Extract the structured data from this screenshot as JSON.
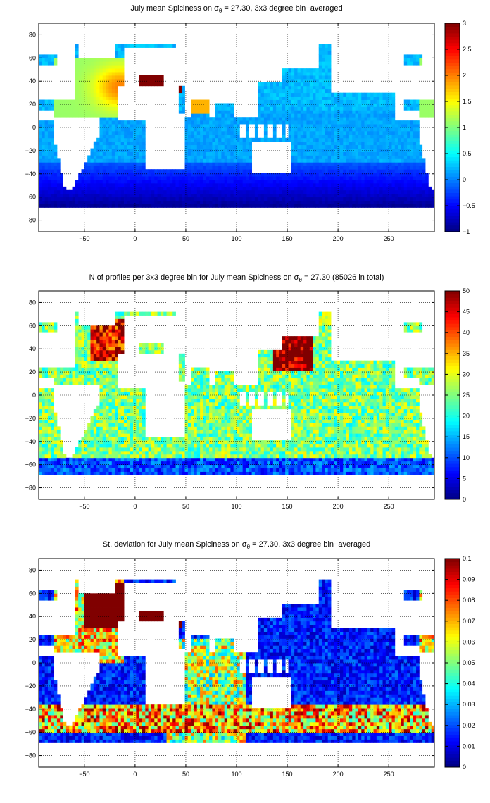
{
  "chart_data": [
    {
      "type": "heatmap",
      "panel": "spiciness",
      "title_prefix": "July mean Spiciness on ",
      "title_sigma": "σ",
      "title_sub": "θ",
      "title_suffix": " = 27.30, 3x3 degree bin−averaged",
      "x_ticks": [
        -50,
        0,
        50,
        100,
        150,
        200,
        250
      ],
      "y_ticks": [
        80,
        60,
        40,
        20,
        0,
        -20,
        -40,
        -60,
        -80
      ],
      "xlim": [
        -95,
        295
      ],
      "ylim": [
        -90,
        90
      ],
      "grid": true,
      "colorbar": {
        "min": -1,
        "max": 3,
        "ticks": [
          3,
          2.5,
          2,
          1.5,
          1,
          0.5,
          0,
          -0.5,
          -1
        ]
      },
      "bin_size_deg": 3
    },
    {
      "type": "heatmap",
      "panel": "profile-count",
      "title_prefix": "N of profiles per 3x3 degree bin for July mean Spiciness on ",
      "title_sigma": "σ",
      "title_sub": "θ",
      "title_suffix": " = 27.30 (85026 in total)",
      "x_ticks": [
        -50,
        0,
        50,
        100,
        150,
        200,
        250
      ],
      "y_ticks": [
        80,
        60,
        40,
        20,
        0,
        -20,
        -40,
        -60,
        -80
      ],
      "xlim": [
        -95,
        295
      ],
      "ylim": [
        -90,
        90
      ],
      "grid": true,
      "colorbar": {
        "min": 0,
        "max": 50,
        "ticks": [
          50,
          45,
          40,
          35,
          30,
          25,
          20,
          15,
          10,
          5,
          0
        ]
      },
      "total_profiles": 85026,
      "bin_size_deg": 3
    },
    {
      "type": "heatmap",
      "panel": "std-deviation",
      "title_prefix": "St. deviation for July mean Spiciness on ",
      "title_sigma": "σ",
      "title_sub": "θ",
      "title_suffix": " = 27.30, 3x3 degree bin−averaged",
      "x_ticks": [
        -50,
        0,
        50,
        100,
        150,
        200,
        250
      ],
      "y_ticks": [
        80,
        60,
        40,
        20,
        0,
        -20,
        -40,
        -60,
        -80
      ],
      "xlim": [
        -95,
        295
      ],
      "ylim": [
        -90,
        90
      ],
      "grid": true,
      "colorbar": {
        "min": 0,
        "max": 0.1,
        "ticks": [
          0.1,
          0.09,
          0.08,
          0.07,
          0.06,
          0.05,
          0.04,
          0.03,
          0.02,
          0.01,
          0
        ]
      },
      "bin_size_deg": 3
    }
  ]
}
